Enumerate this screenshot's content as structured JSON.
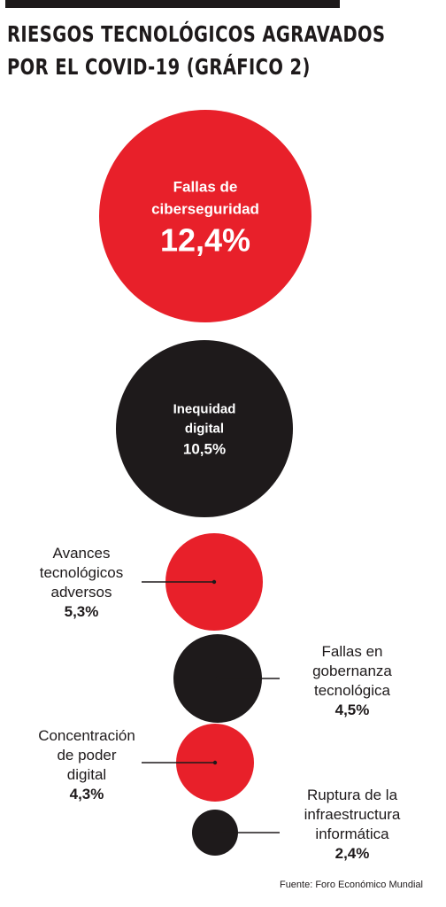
{
  "title": {
    "line1": "RIESGOS TECNOLÓGICOS AGRAVADOS",
    "line2": "POR EL COVID-19 (GRÁFICO 2)"
  },
  "source": "Fuente: Foro Económico Mundial",
  "colors": {
    "red": "#e8202a",
    "black": "#1e1a1b",
    "text": "#1e1a1b",
    "inner_text": "#ffffff"
  },
  "chart_data": {
    "type": "bubble",
    "unit": "%",
    "series": [
      {
        "label_lines": [
          "Fallas de",
          "ciberseguridad"
        ],
        "value_label": "12,4%",
        "value": 12.4,
        "color": "red",
        "label_position": "inside"
      },
      {
        "label_lines": [
          "Inequidad",
          "digital"
        ],
        "value_label": "10,5%",
        "value": 10.5,
        "color": "black",
        "label_position": "inside"
      },
      {
        "label_lines": [
          "Avances",
          "tecnológicos",
          "adversos"
        ],
        "value_label": "5,3%",
        "value": 5.3,
        "color": "red",
        "label_position": "left"
      },
      {
        "label_lines": [
          "Fallas en",
          "gobernanza",
          "tecnológica"
        ],
        "value_label": "4,5%",
        "value": 4.5,
        "color": "black",
        "label_position": "right"
      },
      {
        "label_lines": [
          "Concentración",
          "de poder",
          "digital"
        ],
        "value_label": "4,3%",
        "value": 4.3,
        "color": "red",
        "label_position": "left"
      },
      {
        "label_lines": [
          "Ruptura de la",
          "infraestructura",
          "informática"
        ],
        "value_label": "2,4%",
        "value": 2.4,
        "color": "black",
        "label_position": "right"
      }
    ]
  }
}
